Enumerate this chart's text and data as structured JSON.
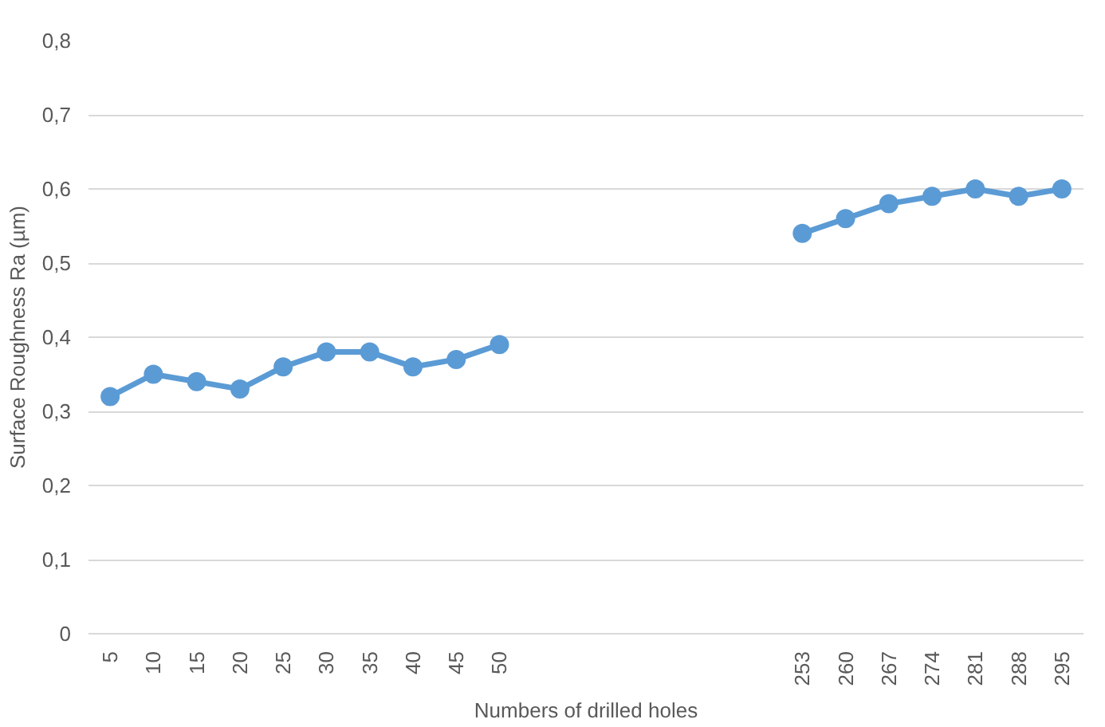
{
  "chart_data": {
    "type": "line",
    "xlabel": "Numbers of drilled holes",
    "ylabel": "Surface Roughness Ra (µm)",
    "categories": [
      "5",
      "10",
      "15",
      "20",
      "25",
      "30",
      "35",
      "40",
      "45",
      "50",
      null,
      null,
      null,
      null,
      null,
      null,
      "253",
      "260",
      "267",
      "274",
      "281",
      "288",
      "295"
    ],
    "series": [
      {
        "color": "#5b9bd5",
        "values": [
          0.32,
          0.35,
          0.34,
          0.33,
          0.36,
          0.38,
          0.38,
          0.36,
          0.37,
          0.39,
          null,
          null,
          null,
          null,
          null,
          null,
          0.54,
          0.56,
          0.58,
          0.59,
          0.6,
          0.59,
          0.6
        ]
      }
    ],
    "ylim": [
      0,
      0.8
    ],
    "yticks": [
      0,
      {
        "value": 0.1,
        "label": "0,1"
      },
      {
        "value": 0.2,
        "label": "0,2"
      },
      {
        "value": 0.3,
        "label": "0,3"
      },
      {
        "value": 0.4,
        "label": "0,4"
      },
      {
        "value": 0.5,
        "label": "0,5"
      },
      {
        "value": 0.6,
        "label": "0,6"
      },
      {
        "value": 0.7,
        "label": "0,7"
      },
      {
        "value": 0.8,
        "label": "0,8"
      }
    ],
    "grid": "y",
    "marker": "circle",
    "line_style": "solid"
  }
}
